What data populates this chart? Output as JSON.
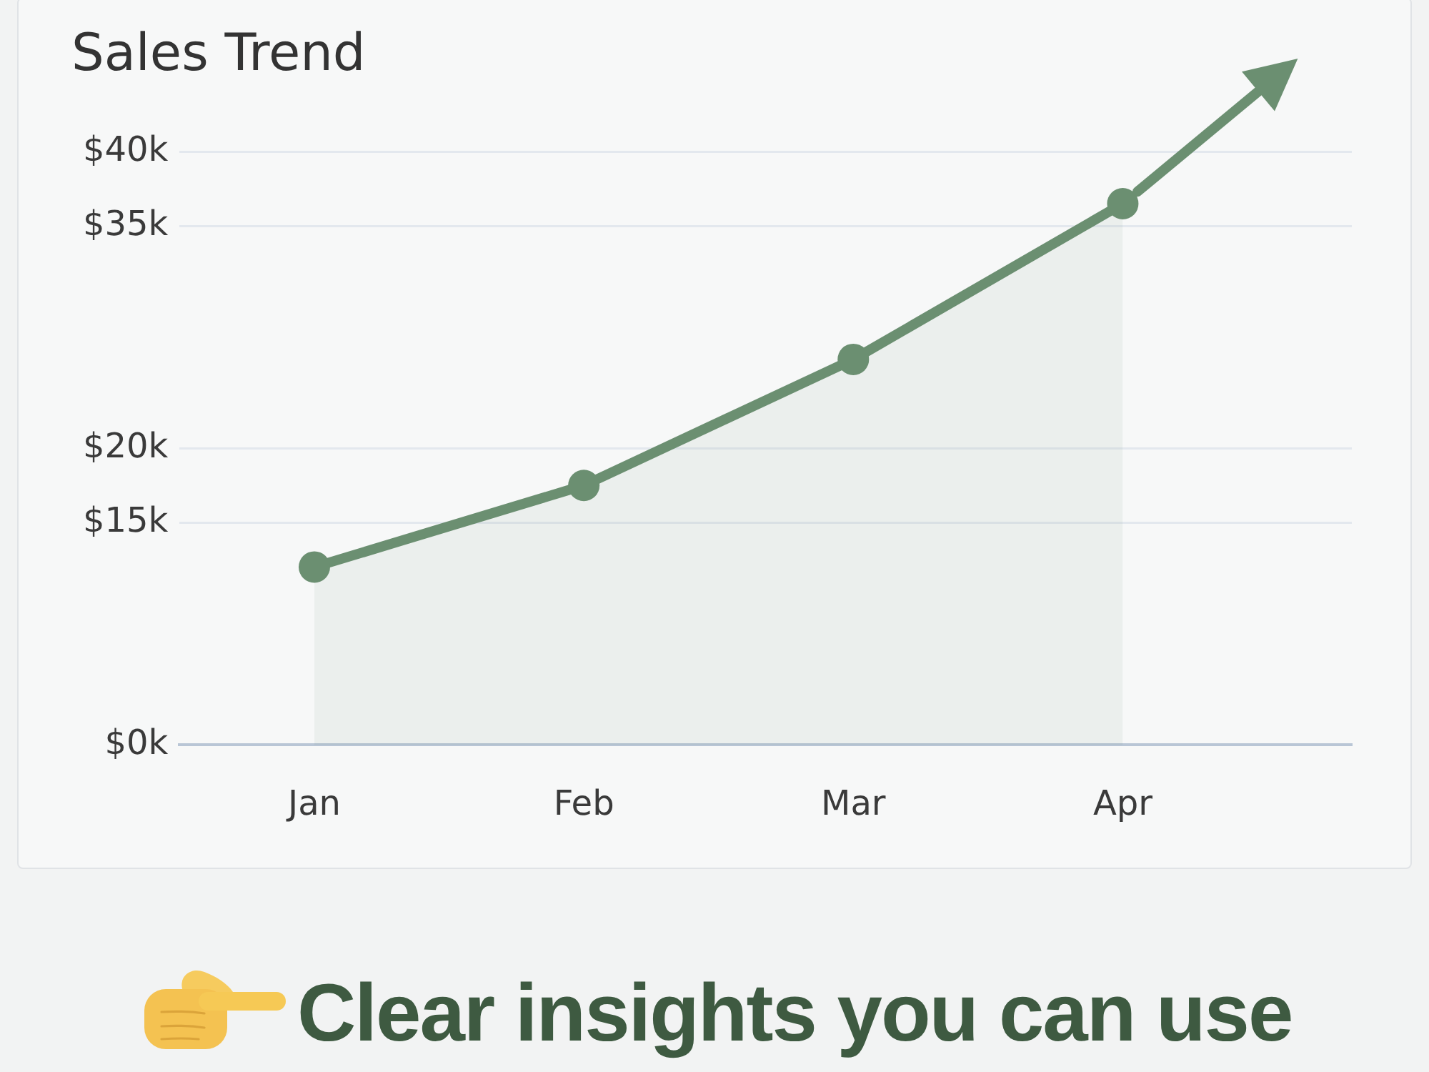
{
  "chart_data": {
    "type": "area",
    "title": "Sales Trend",
    "categories": [
      "Jan",
      "Feb",
      "Mar",
      "Apr"
    ],
    "series": [
      {
        "color": "#6b8f71",
        "values": [
          12000,
          17500,
          26000,
          36500
        ]
      }
    ],
    "ylim": [
      0,
      40000
    ],
    "yticks": [
      {
        "value": 0,
        "label": "$0k"
      },
      {
        "value": 15000,
        "label": "$15k"
      },
      {
        "value": 20000,
        "label": "$20k"
      },
      {
        "value": 35000,
        "label": "$35k"
      },
      {
        "value": 40000,
        "label": "$40k"
      }
    ],
    "grid": "y",
    "marker": "circle",
    "annotations": [
      "Clear insights you can use"
    ]
  }
}
